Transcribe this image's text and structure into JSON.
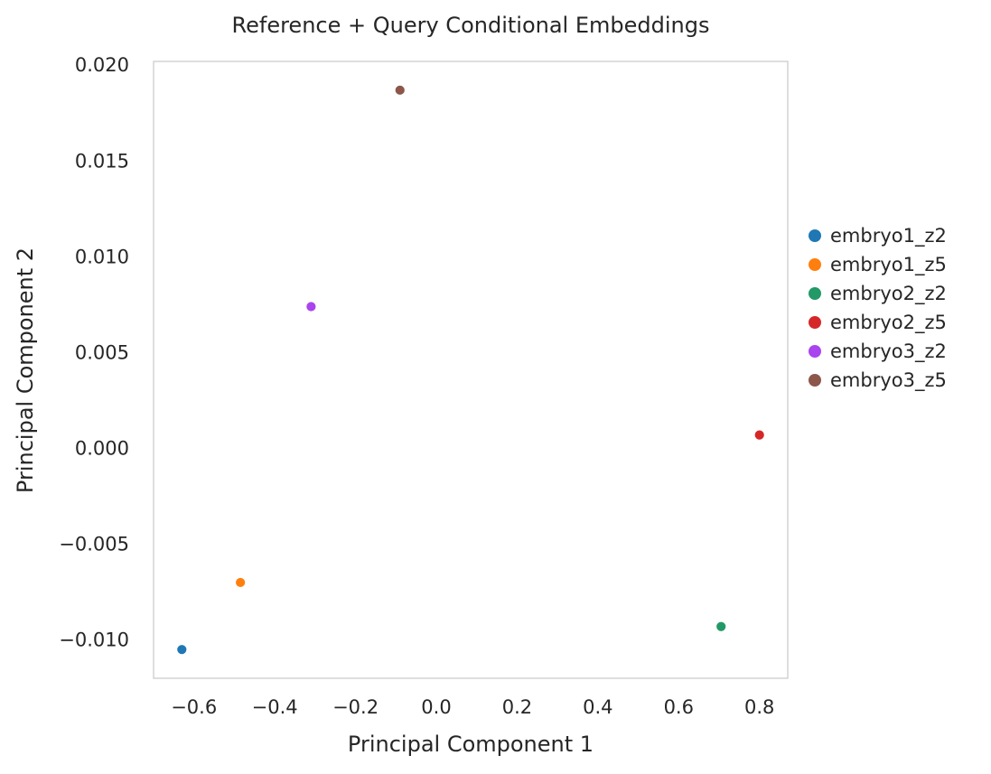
{
  "chart_data": {
    "type": "scatter",
    "title": "Reference + Query Conditional Embeddings",
    "xlabel": "Principal Component 1",
    "ylabel": "Principal Component 2",
    "xlim": [
      -0.7,
      0.87
    ],
    "ylim": [
      -0.012,
      0.0202
    ],
    "x_ticks": [
      -0.6,
      -0.4,
      -0.2,
      0.0,
      0.2,
      0.4,
      0.6,
      0.8
    ],
    "x_tick_labels": [
      "−0.6",
      "−0.4",
      "−0.2",
      "0.0",
      "0.2",
      "0.4",
      "0.6",
      "0.8"
    ],
    "y_ticks": [
      -0.01,
      -0.005,
      0.0,
      0.005,
      0.01,
      0.015,
      0.02
    ],
    "y_tick_labels": [
      "−0.010",
      "−0.005",
      "0.000",
      "0.005",
      "0.010",
      "0.015",
      "0.020"
    ],
    "grid": false,
    "legend_placement": "outside-right",
    "series": [
      {
        "name": "embryo1_z2",
        "color": "#1f77b4",
        "points": [
          {
            "x": -0.63,
            "y": -0.0105
          }
        ]
      },
      {
        "name": "embryo1_z5",
        "color": "#ff7f0e",
        "points": [
          {
            "x": -0.485,
            "y": -0.007
          }
        ]
      },
      {
        "name": "embryo2_z2",
        "color": "#229966",
        "points": [
          {
            "x": 0.705,
            "y": -0.0093
          }
        ]
      },
      {
        "name": "embryo2_z5",
        "color": "#d62728",
        "points": [
          {
            "x": 0.8,
            "y": 0.0007
          }
        ]
      },
      {
        "name": "embryo3_z2",
        "color": "#aa44ee",
        "points": [
          {
            "x": -0.31,
            "y": 0.0074
          }
        ]
      },
      {
        "name": "embryo3_z5",
        "color": "#8c564b",
        "points": [
          {
            "x": -0.09,
            "y": 0.0187
          }
        ]
      }
    ]
  }
}
